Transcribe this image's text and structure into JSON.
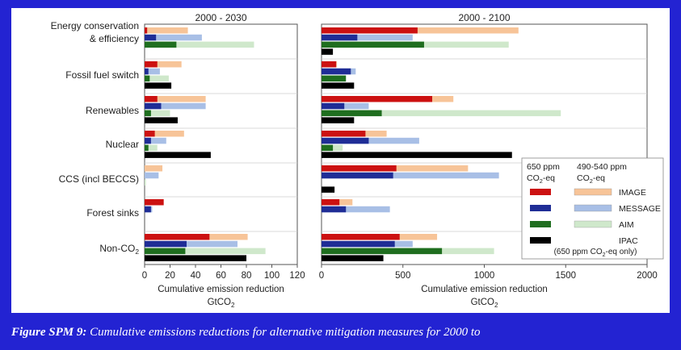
{
  "caption": {
    "label": "Figure SPM 9:",
    "text": "Cumulative emissions reductions for alternative mitigation measures for 2000 to"
  },
  "colors": {
    "IMAGE_650": "#cc1111",
    "IMAGE_490": "#f7c498",
    "MESSAGE_650": "#1f2d96",
    "MESSAGE_490": "#a8bfe6",
    "AIM_650": "#1f6e1f",
    "AIM_490": "#cfe8cb",
    "IPAC": "#000000"
  },
  "legend": {
    "col1": [
      "650 ppm",
      "CO2-eq"
    ],
    "col2": [
      "490-540  ppm",
      "CO2-eq"
    ],
    "items": [
      "IMAGE",
      "MESSAGE",
      "AIM",
      "IPAC"
    ],
    "ipac_note": "(650 ppm CO2-eq only)"
  },
  "chart_data": [
    {
      "type": "bar",
      "orientation": "horizontal",
      "title": "2000 - 2030",
      "xlabel": "Cumulative emission reduction",
      "xunit": "GtCO2",
      "xlim": [
        0,
        120
      ],
      "xticks": [
        "0",
        "20",
        "40",
        "60",
        "80",
        "100",
        "120"
      ],
      "categories": [
        "Energy conservation & efficiency",
        "Fossil fuel switch",
        "Renewables",
        "Nuclear",
        "CCS (incl BECCS)",
        "Forest sinks",
        "Non-CO2"
      ],
      "series": [
        {
          "name": "IMAGE",
          "scenario_650": [
            2,
            10,
            10,
            8,
            0,
            15,
            51
          ],
          "scenario_490_540": [
            34,
            29,
            48,
            31,
            14,
            15,
            81
          ]
        },
        {
          "name": "MESSAGE",
          "scenario_650": [
            9,
            3,
            13,
            5,
            0,
            5,
            33
          ],
          "scenario_490_540": [
            45,
            12,
            48,
            17,
            11,
            6,
            73
          ]
        },
        {
          "name": "AIM",
          "scenario_650": [
            25,
            4,
            5,
            3,
            0,
            0,
            32
          ],
          "scenario_490_540": [
            86,
            19,
            20,
            10,
            1,
            0,
            95
          ]
        },
        {
          "name": "IPAC",
          "scenario_650": [
            0,
            21,
            26,
            52,
            0,
            0,
            80
          ]
        }
      ]
    },
    {
      "type": "bar",
      "orientation": "horizontal",
      "title": "2000 - 2100",
      "xlabel": "Cumulative emission reduction",
      "xunit": "GtCO2",
      "xlim": [
        0,
        2000
      ],
      "xticks": [
        "0",
        "500",
        "1000",
        "1500",
        "2000"
      ],
      "categories": [
        "Energy conservation & efficiency",
        "Fossil fuel switch",
        "Renewables",
        "Nuclear",
        "CCS (incl BECCS)",
        "Forest sinks",
        "Non-CO2"
      ],
      "series": [
        {
          "name": "IMAGE",
          "scenario_650": [
            590,
            90,
            680,
            270,
            460,
            110,
            480
          ],
          "scenario_490_540": [
            1210,
            95,
            810,
            400,
            900,
            190,
            710
          ]
        },
        {
          "name": "MESSAGE",
          "scenario_650": [
            220,
            180,
            140,
            290,
            440,
            150,
            450
          ],
          "scenario_490_540": [
            560,
            210,
            290,
            600,
            1090,
            420,
            560
          ]
        },
        {
          "name": "AIM",
          "scenario_650": [
            630,
            150,
            370,
            70,
            0,
            0,
            740
          ],
          "scenario_490_540": [
            1150,
            150,
            1470,
            130,
            0,
            0,
            1060
          ]
        },
        {
          "name": "IPAC",
          "scenario_650": [
            70,
            200,
            200,
            1170,
            80,
            0,
            380
          ]
        }
      ]
    }
  ]
}
